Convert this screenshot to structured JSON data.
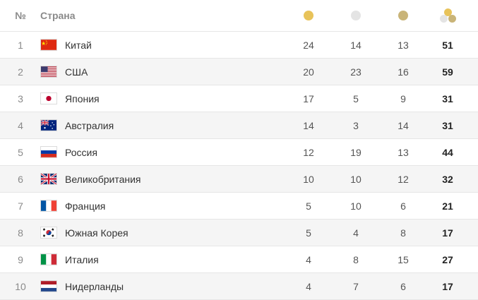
{
  "header": {
    "num": "№",
    "country": "Страна",
    "icons": [
      "gold-medal-icon",
      "silver-medal-icon",
      "bronze-medal-icon",
      "total-medals-icon"
    ]
  },
  "colors": {
    "gold": "#e8c35a",
    "silver": "#e4e4e4",
    "bronze": "#c9b478",
    "alt_row": "#f5f5f5"
  },
  "rows": [
    {
      "rank": "1",
      "country": "Китай",
      "flag": "china-flag-icon",
      "gold": "24",
      "silver": "14",
      "bronze": "13",
      "total": "51"
    },
    {
      "rank": "2",
      "country": "США",
      "flag": "usa-flag-icon",
      "gold": "20",
      "silver": "23",
      "bronze": "16",
      "total": "59"
    },
    {
      "rank": "3",
      "country": "Япония",
      "flag": "japan-flag-icon",
      "gold": "17",
      "silver": "5",
      "bronze": "9",
      "total": "31"
    },
    {
      "rank": "4",
      "country": "Австралия",
      "flag": "australia-flag-icon",
      "gold": "14",
      "silver": "3",
      "bronze": "14",
      "total": "31"
    },
    {
      "rank": "5",
      "country": "Россия",
      "flag": "russia-flag-icon",
      "gold": "12",
      "silver": "19",
      "bronze": "13",
      "total": "44"
    },
    {
      "rank": "6",
      "country": "Великобритания",
      "flag": "uk-flag-icon",
      "gold": "10",
      "silver": "10",
      "bronze": "12",
      "total": "32"
    },
    {
      "rank": "7",
      "country": "Франция",
      "flag": "france-flag-icon",
      "gold": "5",
      "silver": "10",
      "bronze": "6",
      "total": "21"
    },
    {
      "rank": "8",
      "country": "Южная Корея",
      "flag": "south-korea-flag-icon",
      "gold": "5",
      "silver": "4",
      "bronze": "8",
      "total": "17"
    },
    {
      "rank": "9",
      "country": "Италия",
      "flag": "italy-flag-icon",
      "gold": "4",
      "silver": "8",
      "bronze": "15",
      "total": "27"
    },
    {
      "rank": "10",
      "country": "Нидерланды",
      "flag": "netherlands-flag-icon",
      "gold": "4",
      "silver": "7",
      "bronze": "6",
      "total": "17"
    }
  ]
}
